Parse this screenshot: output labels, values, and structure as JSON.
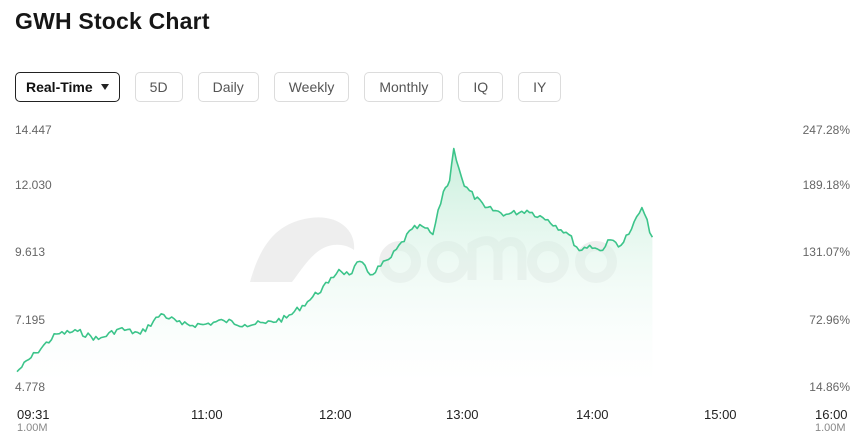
{
  "title": "GWH Stock Chart",
  "tabs": [
    {
      "label": "Real-Time",
      "active": true
    },
    {
      "label": "5D"
    },
    {
      "label": "Daily"
    },
    {
      "label": "Weekly"
    },
    {
      "label": "Monthly"
    },
    {
      "label": "IQ"
    },
    {
      "label": "IY"
    }
  ],
  "watermark_icon": "moomoo-logo-icon",
  "colors": {
    "line": "#3cc48a",
    "fill_top": "#bfecd6",
    "fill_bottom": "#ffffff"
  },
  "chart_data": {
    "type": "area",
    "x_ticks": [
      "09:31",
      "11:00",
      "12:00",
      "13:00",
      "14:00",
      "15:00",
      "16:00"
    ],
    "x_sub_labels": [
      "1.00M",
      "1.00M"
    ],
    "y_ticks_left": [
      "14.447",
      "12.030",
      "9.613",
      "7.195",
      "4.778"
    ],
    "y_ticks_right": [
      "247.28%",
      "189.18%",
      "131.07%",
      "72.96%",
      "14.86%"
    ],
    "ylim": [
      4.778,
      14.447
    ],
    "series": [
      {
        "x": [
          "09:31",
          "09:40",
          "09:50",
          "10:00",
          "10:10",
          "10:20",
          "10:30",
          "10:40",
          "10:50",
          "11:00",
          "11:10",
          "11:20",
          "11:30",
          "11:40",
          "11:50",
          "12:00",
          "12:05",
          "12:10",
          "12:15",
          "12:20",
          "12:30",
          "12:40",
          "12:45",
          "12:50",
          "12:55",
          "12:58",
          "13:00",
          "13:05",
          "13:15",
          "13:25",
          "13:35",
          "13:45",
          "13:55",
          "14:00",
          "14:05",
          "14:10",
          "14:15",
          "14:20",
          "14:25",
          "14:30",
          "14:35"
        ],
        "values": [
          5.2,
          5.9,
          6.6,
          6.7,
          6.4,
          6.8,
          6.6,
          7.35,
          6.95,
          6.95,
          7.1,
          6.95,
          7.0,
          7.2,
          7.8,
          8.5,
          9.0,
          8.8,
          9.3,
          8.8,
          9.45,
          10.5,
          10.6,
          10.3,
          11.9,
          12.3,
          13.5,
          12.1,
          11.3,
          11.05,
          11.2,
          10.85,
          10.3,
          9.7,
          9.9,
          9.7,
          10.1,
          9.9,
          10.5,
          11.3,
          10.2
        ]
      }
    ]
  }
}
